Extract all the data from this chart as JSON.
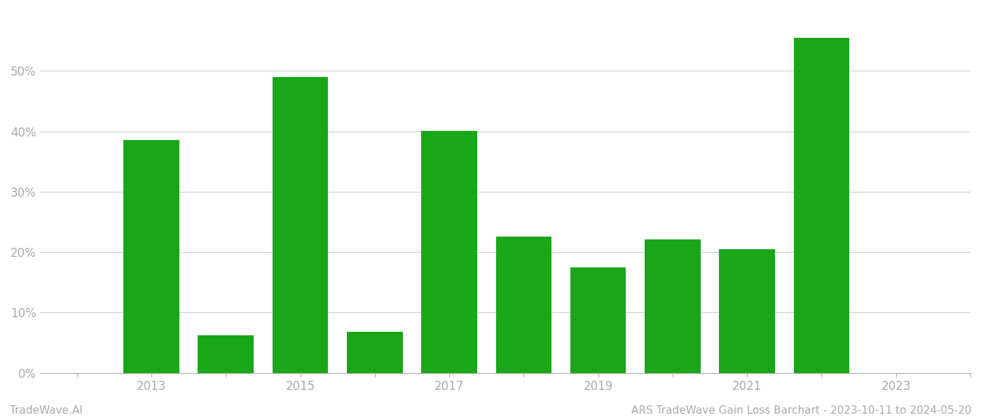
{
  "years": [
    2013,
    2014,
    2015,
    2016,
    2017,
    2018,
    2019,
    2020,
    2021,
    2022,
    2023
  ],
  "values": [
    0.385,
    0.062,
    0.49,
    0.068,
    0.401,
    0.225,
    0.174,
    0.221,
    0.205,
    0.555,
    null
  ],
  "bar_color": "#1aa619",
  "background_color": "#ffffff",
  "grid_color": "#cccccc",
  "axis_color": "#aaaaaa",
  "tick_label_color": "#aaaaaa",
  "ylim": [
    0,
    0.6
  ],
  "yticks": [
    0.0,
    0.1,
    0.2,
    0.3,
    0.4,
    0.5
  ],
  "xlim": [
    2011.5,
    2024.0
  ],
  "all_xticks": [
    2012,
    2013,
    2014,
    2015,
    2016,
    2017,
    2018,
    2019,
    2020,
    2021,
    2022,
    2023,
    2024
  ],
  "label_xticks": [
    2013,
    2015,
    2017,
    2019,
    2021,
    2023
  ],
  "footer_left": "TradeWave.AI",
  "footer_right": "ARS TradeWave Gain Loss Barchart - 2023-10-11 to 2024-05-20",
  "footer_color": "#aaaaaa",
  "footer_fontsize": 11,
  "bar_width": 0.75
}
